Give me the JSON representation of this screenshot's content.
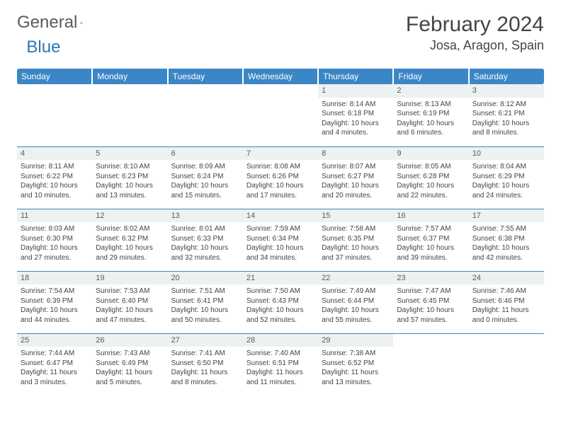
{
  "logo": {
    "part1": "General",
    "part2": "Blue"
  },
  "title": "February 2024",
  "location": "Josa, Aragon, Spain",
  "colors": {
    "header_bg": "#3b86c6",
    "header_text": "#ffffff",
    "daynum_bg": "#eef1f2",
    "border": "#3b86c6",
    "logo_gray": "#555b60",
    "logo_blue": "#2f74b5"
  },
  "dayHeaders": [
    "Sunday",
    "Monday",
    "Tuesday",
    "Wednesday",
    "Thursday",
    "Friday",
    "Saturday"
  ],
  "weeks": [
    [
      null,
      null,
      null,
      null,
      {
        "n": "1",
        "sr": "8:14 AM",
        "ss": "6:18 PM",
        "dl": "10 hours and 4 minutes."
      },
      {
        "n": "2",
        "sr": "8:13 AM",
        "ss": "6:19 PM",
        "dl": "10 hours and 6 minutes."
      },
      {
        "n": "3",
        "sr": "8:12 AM",
        "ss": "6:21 PM",
        "dl": "10 hours and 8 minutes."
      }
    ],
    [
      {
        "n": "4",
        "sr": "8:11 AM",
        "ss": "6:22 PM",
        "dl": "10 hours and 10 minutes."
      },
      {
        "n": "5",
        "sr": "8:10 AM",
        "ss": "6:23 PM",
        "dl": "10 hours and 13 minutes."
      },
      {
        "n": "6",
        "sr": "8:09 AM",
        "ss": "6:24 PM",
        "dl": "10 hours and 15 minutes."
      },
      {
        "n": "7",
        "sr": "8:08 AM",
        "ss": "6:26 PM",
        "dl": "10 hours and 17 minutes."
      },
      {
        "n": "8",
        "sr": "8:07 AM",
        "ss": "6:27 PM",
        "dl": "10 hours and 20 minutes."
      },
      {
        "n": "9",
        "sr": "8:05 AM",
        "ss": "6:28 PM",
        "dl": "10 hours and 22 minutes."
      },
      {
        "n": "10",
        "sr": "8:04 AM",
        "ss": "6:29 PM",
        "dl": "10 hours and 24 minutes."
      }
    ],
    [
      {
        "n": "11",
        "sr": "8:03 AM",
        "ss": "6:30 PM",
        "dl": "10 hours and 27 minutes."
      },
      {
        "n": "12",
        "sr": "8:02 AM",
        "ss": "6:32 PM",
        "dl": "10 hours and 29 minutes."
      },
      {
        "n": "13",
        "sr": "8:01 AM",
        "ss": "6:33 PM",
        "dl": "10 hours and 32 minutes."
      },
      {
        "n": "14",
        "sr": "7:59 AM",
        "ss": "6:34 PM",
        "dl": "10 hours and 34 minutes."
      },
      {
        "n": "15",
        "sr": "7:58 AM",
        "ss": "6:35 PM",
        "dl": "10 hours and 37 minutes."
      },
      {
        "n": "16",
        "sr": "7:57 AM",
        "ss": "6:37 PM",
        "dl": "10 hours and 39 minutes."
      },
      {
        "n": "17",
        "sr": "7:55 AM",
        "ss": "6:38 PM",
        "dl": "10 hours and 42 minutes."
      }
    ],
    [
      {
        "n": "18",
        "sr": "7:54 AM",
        "ss": "6:39 PM",
        "dl": "10 hours and 44 minutes."
      },
      {
        "n": "19",
        "sr": "7:53 AM",
        "ss": "6:40 PM",
        "dl": "10 hours and 47 minutes."
      },
      {
        "n": "20",
        "sr": "7:51 AM",
        "ss": "6:41 PM",
        "dl": "10 hours and 50 minutes."
      },
      {
        "n": "21",
        "sr": "7:50 AM",
        "ss": "6:43 PM",
        "dl": "10 hours and 52 minutes."
      },
      {
        "n": "22",
        "sr": "7:49 AM",
        "ss": "6:44 PM",
        "dl": "10 hours and 55 minutes."
      },
      {
        "n": "23",
        "sr": "7:47 AM",
        "ss": "6:45 PM",
        "dl": "10 hours and 57 minutes."
      },
      {
        "n": "24",
        "sr": "7:46 AM",
        "ss": "6:46 PM",
        "dl": "11 hours and 0 minutes."
      }
    ],
    [
      {
        "n": "25",
        "sr": "7:44 AM",
        "ss": "6:47 PM",
        "dl": "11 hours and 3 minutes."
      },
      {
        "n": "26",
        "sr": "7:43 AM",
        "ss": "6:49 PM",
        "dl": "11 hours and 5 minutes."
      },
      {
        "n": "27",
        "sr": "7:41 AM",
        "ss": "6:50 PM",
        "dl": "11 hours and 8 minutes."
      },
      {
        "n": "28",
        "sr": "7:40 AM",
        "ss": "6:51 PM",
        "dl": "11 hours and 11 minutes."
      },
      {
        "n": "29",
        "sr": "7:38 AM",
        "ss": "6:52 PM",
        "dl": "11 hours and 13 minutes."
      },
      null,
      null
    ]
  ],
  "labels": {
    "sunrise": "Sunrise: ",
    "sunset": "Sunset: ",
    "daylight": "Daylight: "
  }
}
